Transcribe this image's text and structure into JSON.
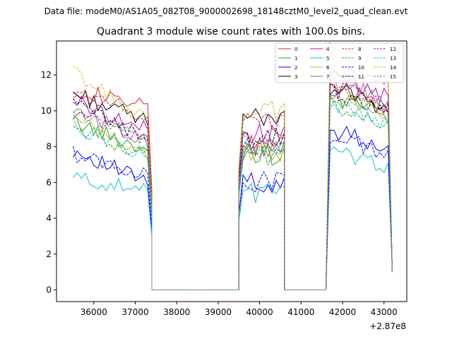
{
  "header": {
    "data_file": "Data file: modeM0/AS1A05_082T08_9000002698_18148cztM0_level2_quad_clean.evt"
  },
  "chart_data": {
    "type": "line",
    "title": "Quadrant 3 module wise count rates with 100.0s bins.",
    "xlabel": "",
    "ylabel": "",
    "x_offset_label": "+2.87e8",
    "xlim": [
      35100,
      43550
    ],
    "ylim": [
      -0.65,
      13.9
    ],
    "x_ticks": [
      36000,
      37000,
      38000,
      39000,
      40000,
      41000,
      42000,
      43000
    ],
    "y_ticks": [
      0,
      2,
      4,
      6,
      8,
      10,
      12
    ],
    "grid": false,
    "legend_position": "top-right",
    "segments": [
      {
        "x_start": 35500,
        "step": 100,
        "points": 20,
        "x_end": 37400
      },
      {
        "x_start": 37400,
        "step": 100,
        "points": 22,
        "x_end": 39500
      },
      {
        "x_start": 39500,
        "step": 100,
        "points": 12,
        "x_end": 40600
      },
      {
        "x_start": 40600,
        "step": 100,
        "points": 11,
        "x_end": 41600
      },
      {
        "x_start": 41600,
        "step": 100,
        "points": 17,
        "x_end": 43200
      }
    ],
    "series": [
      {
        "name": "0",
        "color": "#d62728",
        "dash": "solid",
        "levels": [
          11.2,
          10.1,
          0,
          8.1,
          0,
          10.7,
          1.0
        ]
      },
      {
        "name": "1",
        "color": "#2ca02c",
        "dash": "solid",
        "levels": [
          9.4,
          7.7,
          0,
          7.6,
          0,
          10.1,
          1.0
        ]
      },
      {
        "name": "2",
        "color": "#0000ff",
        "dash": "solid",
        "levels": [
          7.8,
          5.9,
          0,
          6.0,
          0,
          8.3,
          1.0
        ]
      },
      {
        "name": "3",
        "color": "#000000",
        "dash": "solid",
        "levels": [
          11.0,
          9.3,
          0,
          9.5,
          0,
          10.6,
          1.0
        ]
      },
      {
        "name": "4",
        "color": "#bf00bf",
        "dash": "solid",
        "levels": [
          10.6,
          8.8,
          0,
          8.7,
          0,
          11.1,
          1.0
        ]
      },
      {
        "name": "5",
        "color": "#17becf",
        "dash": "solid",
        "levels": [
          6.3,
          5.4,
          0,
          5.5,
          0,
          7.2,
          1.0
        ]
      },
      {
        "name": "6",
        "color": "#bcbd22",
        "dash": "solid",
        "levels": [
          9.5,
          7.4,
          0,
          7.8,
          0,
          10.2,
          1.0
        ]
      },
      {
        "name": "7",
        "color": "#7f7f7f",
        "dash": "solid",
        "levels": [
          10.2,
          8.2,
          0,
          7.9,
          0,
          10.9,
          1.0
        ]
      },
      {
        "name": "8",
        "color": "#d62728",
        "dash": "dashed",
        "levels": [
          11.1,
          9.6,
          0,
          9.3,
          0,
          11.6,
          1.0
        ]
      },
      {
        "name": "9",
        "color": "#2ca02c",
        "dash": "dashed",
        "levels": [
          9.1,
          7.4,
          0,
          7.5,
          0,
          9.5,
          1.0
        ]
      },
      {
        "name": "10",
        "color": "#0000ff",
        "dash": "dashed",
        "levels": [
          7.6,
          6.3,
          0,
          6.1,
          0,
          7.9,
          1.0
        ]
      },
      {
        "name": "11",
        "color": "#000000",
        "dash": "dashed",
        "levels": [
          10.4,
          8.3,
          0,
          8.4,
          0,
          10.3,
          1.0
        ]
      },
      {
        "name": "12",
        "color": "#bf00bf",
        "dash": "dashed",
        "levels": [
          9.8,
          8.5,
          0,
          8.2,
          0,
          10.6,
          1.0
        ]
      },
      {
        "name": "13",
        "color": "#17becf",
        "dash": "dashed",
        "levels": [
          9.2,
          7.3,
          0,
          7.8,
          0,
          9.7,
          1.0
        ]
      },
      {
        "name": "14",
        "color": "#bcbd22",
        "dash": "dashed",
        "levels": [
          12.2,
          9.2,
          0,
          9.9,
          0,
          12.6,
          1.0
        ]
      },
      {
        "name": "15",
        "color": "#7f7f7f",
        "dash": "dashed",
        "levels": [
          10.0,
          8.1,
          0,
          8.0,
          0,
          10.4,
          1.0
        ]
      }
    ]
  }
}
